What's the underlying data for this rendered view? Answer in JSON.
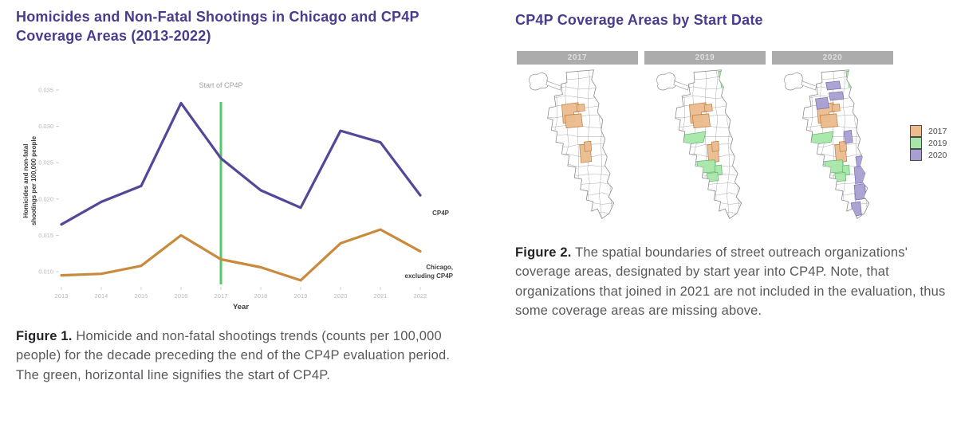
{
  "captions": {
    "fig1_label": "Figure 1.",
    "fig1_text": " Homicide and non-fatal shootings trends (counts per 100,000 people) for the decade preceding the end of the CP4P evaluation period. The green, horizontal line signifies the start of CP4P.",
    "fig2_label": "Figure 2.",
    "fig2_text": " The spatial boundaries of street outreach organizations' coverage areas, designated by start year into CP4P. Note, that organizations that joined in 2021 are not included in the evaluation, thus some coverage areas are missing above."
  },
  "chart_data": [
    {
      "type": "line",
      "title": "Homicides and Non-Fatal Shootings in Chicago and CP4P Coverage Areas (2013-2022)",
      "x": [
        2013,
        2014,
        2015,
        2016,
        2017,
        2018,
        2019,
        2020,
        2021,
        2022
      ],
      "xlabel": "Year",
      "ylabel": "Homicides and non-fatal shootings per 100,000 people",
      "ylabel_lines": [
        "Homicides and non-fatal",
        "shootings per 100,000 people"
      ],
      "ylim": [
        0.008,
        0.036
      ],
      "yticks": [
        0.01,
        0.015,
        0.02,
        0.025,
        0.03,
        0.035
      ],
      "grid": false,
      "annotation": {
        "label": "Start of CP4P",
        "x": 2017,
        "color": "#54c869"
      },
      "series": [
        {
          "name": "CP4P",
          "label_lines": [
            "CP4P"
          ],
          "color": "#564697",
          "values": [
            0.0165,
            0.0196,
            0.0218,
            0.0332,
            0.0256,
            0.0212,
            0.0188,
            0.0294,
            0.0278,
            0.0205
          ]
        },
        {
          "name": "Chicago, excluding CP4P",
          "label_lines": [
            "Chicago,",
            "excluding CP4P"
          ],
          "color": "#c98a3e",
          "values": [
            0.0095,
            0.0097,
            0.0108,
            0.015,
            0.0117,
            0.0106,
            0.0088,
            0.0139,
            0.0158,
            0.0128
          ]
        }
      ],
      "tick_color": "#b7b7b7",
      "axis_label_color": "#3c3c3c",
      "series_label_color": "#3e3e3e",
      "annotation_text_color": "#a0a0a0"
    },
    {
      "type": "map-small-multiples",
      "title": "CP4P Coverage Areas by Start Date",
      "panels": [
        {
          "label": "2017",
          "layers": [
            "2017"
          ]
        },
        {
          "label": "2019",
          "layers": [
            "2017",
            "2019"
          ]
        },
        {
          "label": "2020",
          "layers": [
            "2017",
            "2019",
            "2020"
          ]
        }
      ],
      "legend": [
        {
          "label": "2017",
          "color": "#ecbc8e"
        },
        {
          "label": "2019",
          "color": "#a6e7a9"
        },
        {
          "label": "2020",
          "color": "#a89fd1"
        }
      ],
      "layers": {
        "2017": {
          "fill": "#ecbc8e",
          "stroke": "#c08040",
          "shapes": [
            "54,50 76,47 78,59 70,60 72,73 56,75",
            "58,64 80,62 82,79 60,81",
            "74,50 84,49 85,58 75,59",
            "78,104 92,102 94,126 80,128",
            "84,100 93,99 94,112 85,113"
          ]
        },
        "2019": {
          "fill": "#a6e7a9",
          "stroke": "#66b570",
          "shapes": [
            "48,90 76,86 73,100 45,104",
            "64,126 88,124 90,140 66,142",
            "88,132 97,131 98,144 89,145",
            "78,142 92,141 93,152 79,153",
            "93,5 100,4 101,12 94,13",
            "96,18 104,17 105,25 97,26"
          ]
        },
        "2020": {
          "fill": "#a89fd1",
          "stroke": "#7b70b4",
          "shapes": [
            "66,20 84,18 86,28 68,30",
            "70,34 88,32 90,42 72,44",
            "52,42 68,40 70,54 54,56",
            "90,86 100,84 102,100 92,102",
            "106,120 118,118 120,132 108,134",
            "104,134 118,132 120,154 106,156",
            "104,158 118,156 120,176 106,178",
            "100,182 112,180 114,198 102,200"
          ]
        }
      },
      "map_line_color": "#9b9b9b",
      "map_outline_color": "#848484"
    }
  ]
}
